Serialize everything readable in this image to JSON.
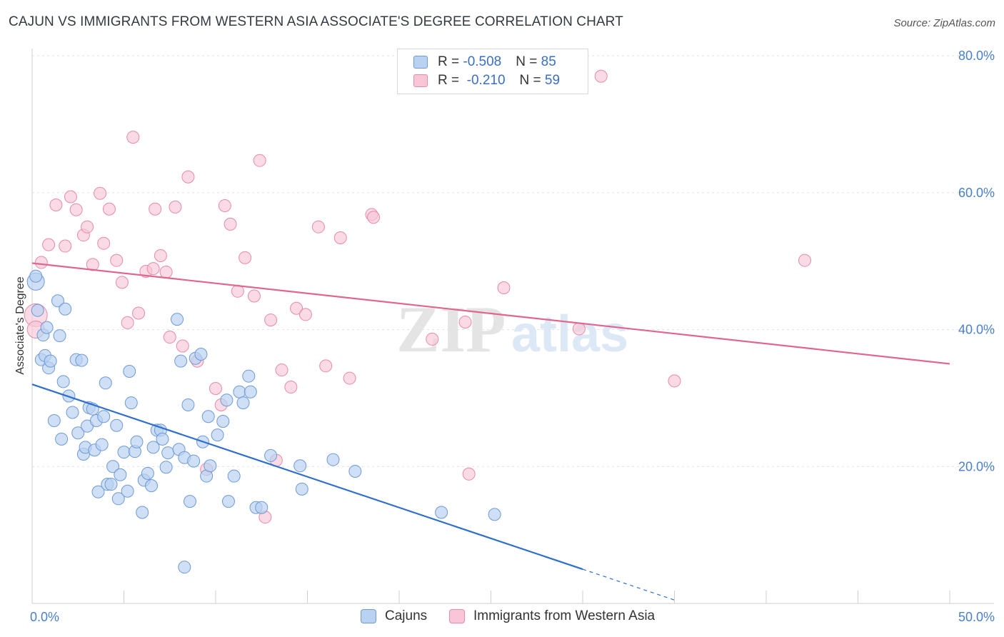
{
  "title": "CAJUN VS IMMIGRANTS FROM WESTERN ASIA ASSOCIATE'S DEGREE CORRELATION CHART",
  "source": "Source: ZipAtlas.com",
  "watermark": {
    "zip": "ZIP",
    "atlas": "atlas"
  },
  "legend": {
    "rows": [
      {
        "r_label": "R = ",
        "r_value": "-0.508",
        "n_label": "N = ",
        "n_value": "85"
      },
      {
        "r_label": "R = ",
        "r_value": " -0.210",
        "n_label": "N = ",
        "n_value": "59"
      }
    ]
  },
  "colors": {
    "cajun_fill": "#b9d2f2",
    "cajun_stroke": "#6f9ad6",
    "cajun_line": "#2f6fcc",
    "imm_fill": "#f8c6d6",
    "imm_stroke": "#e98aa8",
    "imm_line": "#e06690",
    "tick": "#4a7fcb",
    "grid": "#e2e2e2"
  },
  "chart_data": {
    "type": "scatter",
    "title": "CAJUN VS IMMIGRANTS FROM WESTERN ASIA ASSOCIATE'S DEGREE CORRELATION CHART",
    "xlabel": "",
    "ylabel": "Associate's Degree",
    "xlim": [
      0,
      50
    ],
    "ylim": [
      0,
      80
    ],
    "x_tick_labels": [
      "0.0%",
      "50.0%"
    ],
    "y_ticks": [
      20,
      40,
      60,
      80
    ],
    "y_tick_labels": [
      "20.0%",
      "40.0%",
      "60.0%",
      "80.0%"
    ],
    "grid": true,
    "legend_position": "top-center",
    "series": [
      {
        "name": "Cajuns",
        "R": -0.508,
        "N": 85,
        "trend": {
          "x0": 0,
          "y0": 32.0,
          "x1": 30,
          "y1": 5.0,
          "dashed_to_x": 35,
          "dashed_to_y": 0.5
        },
        "points": [
          [
            0.2,
            47.0
          ],
          [
            0.2,
            47.8
          ],
          [
            0.3,
            42.8
          ],
          [
            0.5,
            35.6
          ],
          [
            0.6,
            39.2
          ],
          [
            0.7,
            36.2
          ],
          [
            0.8,
            40.3
          ],
          [
            0.9,
            34.4
          ],
          [
            1.0,
            35.4
          ],
          [
            1.2,
            26.7
          ],
          [
            1.4,
            44.2
          ],
          [
            1.5,
            39.1
          ],
          [
            1.6,
            24.0
          ],
          [
            1.7,
            32.4
          ],
          [
            1.8,
            43.0
          ],
          [
            2.0,
            30.3
          ],
          [
            2.2,
            27.9
          ],
          [
            2.4,
            35.6
          ],
          [
            2.5,
            24.9
          ],
          [
            2.7,
            35.5
          ],
          [
            2.8,
            21.8
          ],
          [
            2.9,
            22.8
          ],
          [
            3.0,
            25.9
          ],
          [
            3.1,
            28.6
          ],
          [
            3.3,
            28.4
          ],
          [
            3.4,
            22.4
          ],
          [
            3.5,
            26.7
          ],
          [
            3.6,
            16.3
          ],
          [
            3.8,
            23.2
          ],
          [
            3.9,
            27.3
          ],
          [
            4.0,
            32.2
          ],
          [
            4.1,
            17.4
          ],
          [
            4.3,
            17.4
          ],
          [
            4.4,
            20.0
          ],
          [
            4.6,
            26.0
          ],
          [
            4.7,
            15.3
          ],
          [
            4.8,
            18.8
          ],
          [
            5.0,
            22.1
          ],
          [
            5.2,
            16.4
          ],
          [
            5.3,
            33.9
          ],
          [
            5.4,
            29.3
          ],
          [
            5.6,
            22.2
          ],
          [
            5.7,
            23.6
          ],
          [
            6.0,
            13.3
          ],
          [
            6.1,
            18.0
          ],
          [
            6.3,
            19.0
          ],
          [
            6.5,
            17.2
          ],
          [
            6.6,
            22.8
          ],
          [
            6.8,
            25.3
          ],
          [
            7.0,
            25.3
          ],
          [
            7.1,
            24.0
          ],
          [
            7.3,
            19.9
          ],
          [
            7.4,
            22.0
          ],
          [
            7.9,
            41.5
          ],
          [
            8.0,
            22.5
          ],
          [
            8.1,
            35.4
          ],
          [
            8.3,
            21.3
          ],
          [
            8.5,
            29.0
          ],
          [
            8.6,
            14.9
          ],
          [
            8.8,
            20.8
          ],
          [
            8.9,
            35.8
          ],
          [
            9.2,
            36.4
          ],
          [
            9.3,
            23.6
          ],
          [
            9.5,
            18.6
          ],
          [
            9.6,
            27.3
          ],
          [
            9.7,
            20.1
          ],
          [
            10.1,
            24.6
          ],
          [
            10.4,
            26.6
          ],
          [
            10.6,
            29.7
          ],
          [
            10.7,
            14.9
          ],
          [
            11.0,
            18.6
          ],
          [
            11.3,
            30.9
          ],
          [
            11.5,
            29.3
          ],
          [
            11.8,
            33.2
          ],
          [
            11.9,
            30.9
          ],
          [
            12.2,
            14.0
          ],
          [
            12.5,
            14.0
          ],
          [
            13.0,
            21.6
          ],
          [
            14.6,
            20.1
          ],
          [
            14.7,
            16.7
          ],
          [
            16.4,
            21.0
          ],
          [
            17.6,
            19.3
          ],
          [
            22.3,
            13.3
          ],
          [
            25.2,
            13.0
          ],
          [
            8.3,
            5.3
          ]
        ]
      },
      {
        "name": "Immigrants from Western Asia",
        "R": -0.21,
        "N": 59,
        "trend": {
          "x0": 0,
          "y0": 49.7,
          "x1": 50,
          "y1": 35.0
        },
        "points": [
          [
            0.2,
            42.1
          ],
          [
            0.5,
            49.8
          ],
          [
            0.9,
            52.4
          ],
          [
            1.3,
            58.2
          ],
          [
            1.8,
            52.2
          ],
          [
            2.1,
            59.4
          ],
          [
            2.4,
            57.5
          ],
          [
            2.8,
            53.8
          ],
          [
            3.0,
            55.0
          ],
          [
            3.3,
            49.5
          ],
          [
            3.7,
            59.9
          ],
          [
            3.9,
            52.6
          ],
          [
            4.2,
            57.6
          ],
          [
            4.6,
            50.1
          ],
          [
            4.9,
            46.9
          ],
          [
            5.2,
            41.0
          ],
          [
            5.5,
            68.1
          ],
          [
            5.8,
            42.4
          ],
          [
            6.2,
            48.5
          ],
          [
            6.6,
            48.9
          ],
          [
            6.7,
            57.6
          ],
          [
            7.0,
            50.8
          ],
          [
            7.3,
            48.4
          ],
          [
            7.5,
            38.9
          ],
          [
            7.8,
            57.9
          ],
          [
            8.2,
            37.6
          ],
          [
            8.5,
            62.3
          ],
          [
            9.0,
            35.4
          ],
          [
            9.5,
            19.6
          ],
          [
            10.0,
            31.4
          ],
          [
            10.3,
            29.0
          ],
          [
            10.5,
            58.1
          ],
          [
            10.8,
            55.4
          ],
          [
            11.2,
            45.6
          ],
          [
            11.6,
            50.5
          ],
          [
            12.1,
            44.9
          ],
          [
            12.4,
            64.7
          ],
          [
            12.7,
            12.6
          ],
          [
            13.0,
            41.4
          ],
          [
            13.3,
            20.9
          ],
          [
            13.6,
            34.1
          ],
          [
            14.1,
            31.6
          ],
          [
            14.4,
            43.1
          ],
          [
            14.9,
            42.2
          ],
          [
            15.6,
            55.0
          ],
          [
            16.0,
            34.7
          ],
          [
            16.8,
            53.4
          ],
          [
            17.3,
            32.9
          ],
          [
            18.5,
            56.8
          ],
          [
            18.6,
            56.4
          ],
          [
            21.8,
            38.6
          ],
          [
            23.6,
            41.1
          ],
          [
            23.8,
            18.9
          ],
          [
            25.7,
            46.1
          ],
          [
            29.8,
            40.1
          ],
          [
            31.0,
            77.0
          ],
          [
            35.0,
            32.5
          ],
          [
            42.1,
            50.1
          ],
          [
            0.2,
            40.0
          ]
        ]
      }
    ]
  }
}
